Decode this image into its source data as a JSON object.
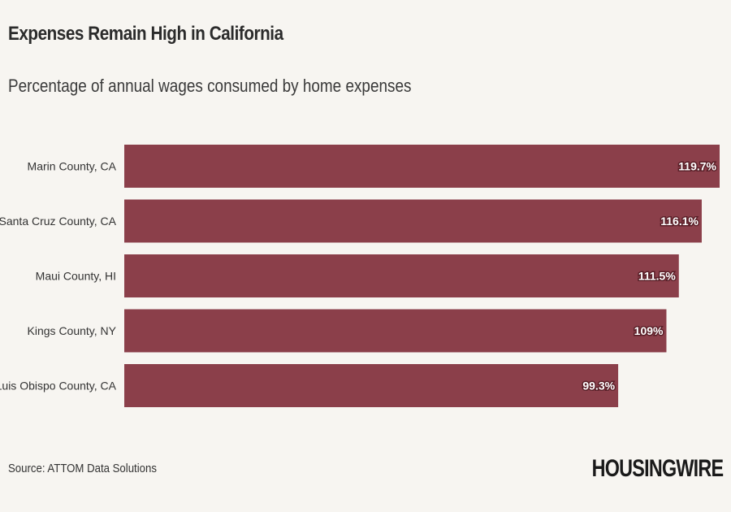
{
  "header": {
    "title": "Expenses Remain High in California",
    "subtitle": "Percentage of annual wages consumed by home expenses"
  },
  "footer": {
    "source": "Source: ATTOM Data Solutions",
    "logo": "HOUSINGWIRE"
  },
  "colors": {
    "bar": "#8b3f4a",
    "value_label_outline": "#5a1f28",
    "background": "#f7f5f1"
  },
  "chart_data": {
    "type": "bar",
    "orientation": "horizontal",
    "title": "Expenses Remain High in California",
    "subtitle": "Percentage of annual wages consumed by home expenses",
    "categories": [
      "Marin County, CA",
      "Santa Cruz County, CA",
      "Maui County, HI",
      "Kings County, NY",
      "San Luis Obispo County, CA"
    ],
    "values": [
      119.7,
      116.1,
      111.5,
      109,
      99.3
    ],
    "value_labels": [
      "119.7%",
      "116.1%",
      "111.5%",
      "109%",
      "99.3%"
    ],
    "xlim": [
      0,
      119.7
    ],
    "xlabel": "",
    "ylabel": "",
    "grid": false,
    "legend": "none"
  }
}
